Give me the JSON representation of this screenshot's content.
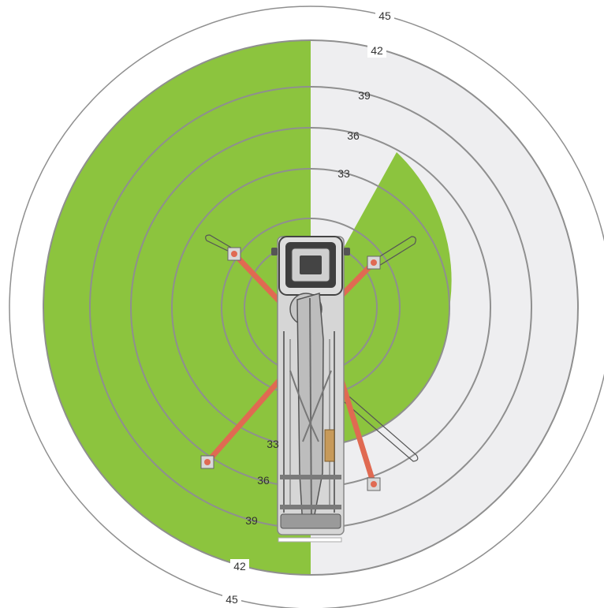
{
  "colors": {
    "coverage": "#8cc43e",
    "uncovered": "#eeeef0",
    "ring": "#8f8f8f",
    "outrigger": "#e06a52",
    "truck_body": "#d2d2d2",
    "truck_outline": "#7a7a7a",
    "truck_dark": "#3a3a3a"
  },
  "rings": {
    "outer_45_top": "45",
    "outer_45_bottom": "45",
    "ring_42_top": "42",
    "ring_42_bottom": "42",
    "ring_39_top": "39",
    "ring_39_bottom": "39",
    "ring_36_top": "36",
    "ring_36_bottom": "36",
    "ring_33_top": "33",
    "ring_33_bottom": "33"
  },
  "icons": {
    "truck": "truck-top-view-icon",
    "outrigger_pad": "outrigger-pad-icon"
  }
}
